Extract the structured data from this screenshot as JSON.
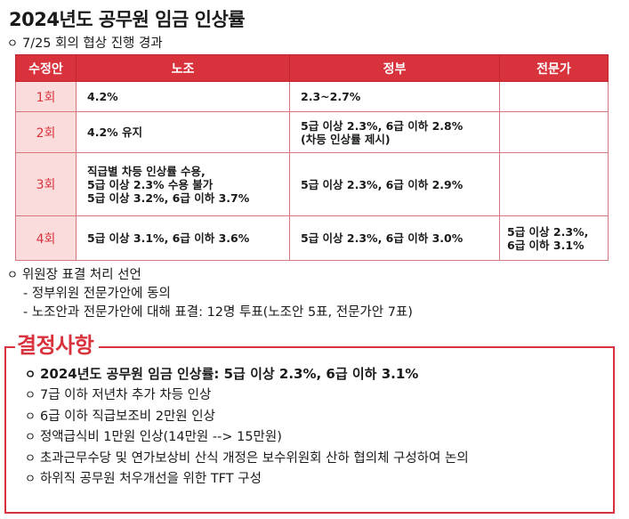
{
  "title": "2024년도 공무원 임금 인상률",
  "subtitle": "7/25 회의 협상 진행 경과",
  "bullet_symbol": "ㅇ",
  "table": {
    "headers": [
      "수정안",
      "노조",
      "정부",
      "전문가"
    ],
    "rows": [
      {
        "round": "1회",
        "union": [
          "4.2%"
        ],
        "gov": [
          "2.3~2.7%"
        ],
        "expert": []
      },
      {
        "round": "2회",
        "union": [
          "4.2% 유지"
        ],
        "gov": [
          "5급 이상 2.3%, 6급 이하 2.8%",
          "(차등 인상률 제시)"
        ],
        "expert": []
      },
      {
        "round": "3회",
        "union": [
          "직급별 차등 인상률 수용,",
          "5급 이상 2.3% 수용 불가",
          "5급 이상 3.2%, 6급 이하 3.7%"
        ],
        "gov": [
          "5급 이상 2.3%, 6급 이하 2.9%"
        ],
        "expert": []
      },
      {
        "round": "4회",
        "union": [
          "5급 이상 3.1%, 6급 이하 3.6%"
        ],
        "gov": [
          "5급 이상 2.3%, 6급 이하 3.0%"
        ],
        "expert": [
          "5급 이상 2.3%,",
          "6급 이하 3.1%"
        ]
      }
    ]
  },
  "chair_section": {
    "title": "위원장 표결 처리 선언",
    "items": [
      "- 정부위원 전문가안에 동의",
      "- 노조안과 전문가안에 대해 표결: 12명 투표(노조안 5표, 전문가안 7표)"
    ]
  },
  "decision": {
    "title": "결정사항",
    "items": [
      "2024년도 공무원 임금 인상률:  5급 이상 2.3%, 6급 이하 3.1%",
      "7급 이하 저년차 추가 차등 인상",
      "6급 이하 직급보조비 2만원 인상",
      "정액급식비 1만원 인상(14만원 --> 15만원)",
      "초과근무수당 및 연가보상비 산식 개정은 보수위원회 산하 협의체 구성하여 논의",
      "하위직 공무원 처우개선을 위한 TFT 구성"
    ]
  },
  "colors": {
    "accent": "#d8323c",
    "round_bg": "#fadcdc",
    "border": "#d5787e"
  }
}
